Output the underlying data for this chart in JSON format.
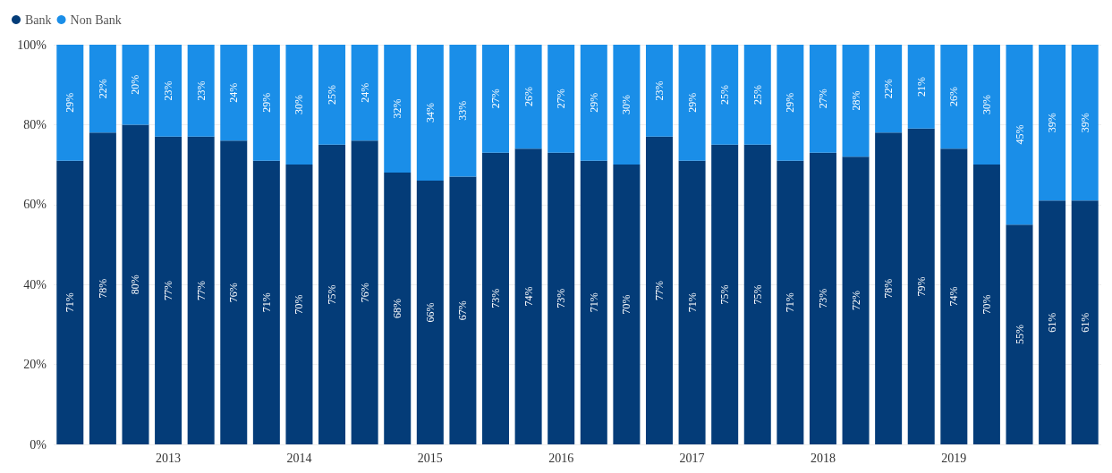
{
  "chart_data": {
    "type": "bar",
    "stacked": true,
    "categories": [
      null,
      null,
      null,
      "2013",
      null,
      null,
      null,
      "2014",
      null,
      null,
      null,
      "2015",
      null,
      null,
      null,
      "2016",
      null,
      null,
      null,
      "2017",
      null,
      null,
      null,
      "2018",
      null,
      null,
      null,
      "2019",
      null,
      null,
      null,
      null
    ],
    "series": [
      {
        "name": "Bank",
        "color": "#043c78",
        "values": [
          71,
          78,
          80,
          77,
          77,
          76,
          71,
          70,
          75,
          76,
          68,
          66,
          67,
          73,
          74,
          73,
          71,
          70,
          77,
          71,
          75,
          75,
          71,
          73,
          72,
          78,
          79,
          74,
          70,
          55,
          61,
          61
        ],
        "value_labels": [
          "71%",
          "78%",
          "80%",
          "77%",
          "77%",
          "76%",
          "71%",
          "70%",
          "75%",
          "76%",
          "68%",
          "66%",
          "67%",
          "73%",
          "74%",
          "73%",
          "71%",
          "70%",
          "77%",
          "71%",
          "75%",
          "75%",
          "71%",
          "73%",
          "72%",
          "78%",
          "79%",
          "74%",
          "70%",
          "55%",
          "61%",
          "61%"
        ]
      },
      {
        "name": "Non Bank",
        "color": "#1a8ee8",
        "values": [
          29,
          22,
          20,
          23,
          23,
          24,
          29,
          30,
          25,
          24,
          32,
          34,
          33,
          27,
          26,
          27,
          29,
          30,
          23,
          29,
          25,
          25,
          29,
          27,
          28,
          22,
          21,
          26,
          30,
          45,
          39,
          39
        ],
        "value_labels": [
          "29%",
          "22%",
          "20%",
          "23%",
          "23%",
          "24%",
          "29%",
          "30%",
          "25%",
          "24%",
          "32%",
          "34%",
          "33%",
          "27%",
          "26%",
          "27%",
          "29%",
          "30%",
          "23%",
          "29%",
          "25%",
          "25%",
          "29%",
          "27%",
          "28%",
          "22%",
          "21%",
          "26%",
          "30%",
          "45%",
          "39%",
          "39%"
        ]
      }
    ],
    "ylim": [
      0,
      100
    ],
    "yticks": [
      {
        "value": 0,
        "label": "0%"
      },
      {
        "value": 20,
        "label": "20%"
      },
      {
        "value": 40,
        "label": "40%"
      },
      {
        "value": 60,
        "label": "60%"
      },
      {
        "value": 80,
        "label": "80%"
      },
      {
        "value": 100,
        "label": "100%"
      }
    ],
    "grid": "y",
    "legend": "top left"
  }
}
